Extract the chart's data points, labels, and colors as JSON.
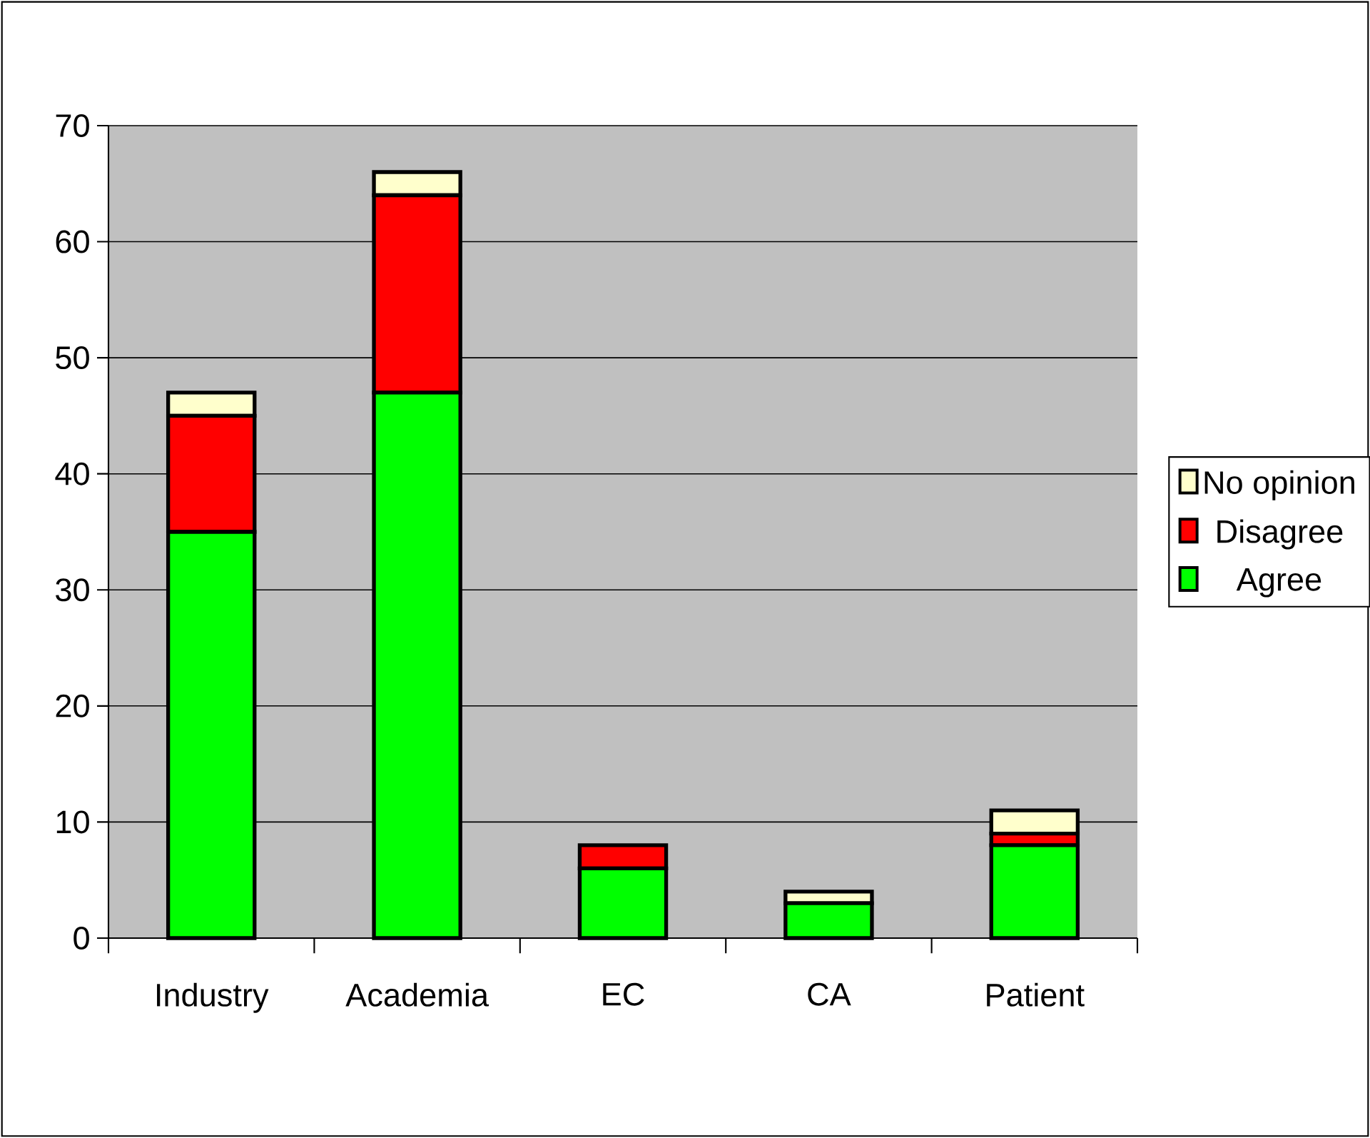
{
  "chart_data": {
    "type": "bar",
    "stacked": true,
    "categories": [
      "Industry",
      "Academia",
      "EC",
      "CA",
      "Patient"
    ],
    "series": [
      {
        "name": "Agree",
        "color": "#00ff00",
        "values": [
          35,
          47,
          6,
          3,
          8
        ]
      },
      {
        "name": "Disagree",
        "color": "#ff0000",
        "values": [
          10,
          17,
          2,
          0,
          1
        ]
      },
      {
        "name": "No opinion",
        "color": "#ffffcc",
        "values": [
          2,
          2,
          0,
          1,
          2
        ]
      }
    ],
    "ylim": [
      0,
      70
    ],
    "yticks": [
      0,
      10,
      20,
      30,
      40,
      50,
      60,
      70
    ],
    "grid": "y",
    "legend": "right"
  }
}
